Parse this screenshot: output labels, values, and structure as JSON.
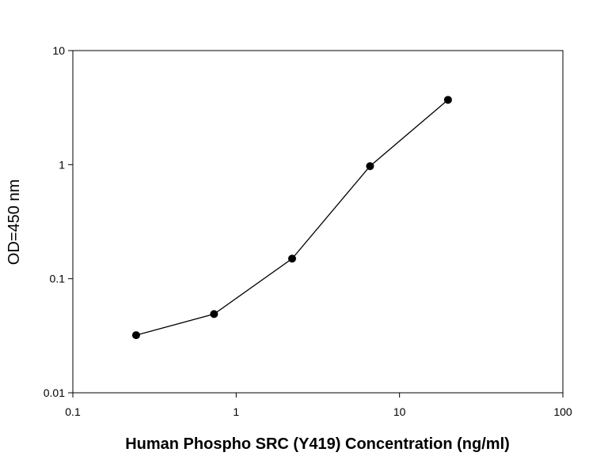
{
  "chart_data": {
    "type": "line",
    "xlabel": "Human Phospho SRC (Y419) Concentration (ng/ml)",
    "ylabel": "OD=450 nm",
    "x_scale": "log",
    "y_scale": "log",
    "xlim": [
      0.1,
      100
    ],
    "ylim": [
      0.01,
      10
    ],
    "x_ticks": [
      {
        "value": 0.1,
        "label": "0.1"
      },
      {
        "value": 1,
        "label": "1"
      },
      {
        "value": 10,
        "label": "10"
      },
      {
        "value": 100,
        "label": "100"
      }
    ],
    "y_ticks": [
      {
        "value": 0.01,
        "label": "0.01"
      },
      {
        "value": 0.1,
        "label": "0.1"
      },
      {
        "value": 1,
        "label": "1"
      },
      {
        "value": 10,
        "label": "10"
      }
    ],
    "grid": false,
    "legend": "none",
    "marker": "filled-circle",
    "color": "#000000",
    "series": [
      {
        "points": [
          {
            "x": 0.244,
            "y": 0.032
          },
          {
            "x": 0.732,
            "y": 0.049
          },
          {
            "x": 2.2,
            "y": 0.15
          },
          {
            "x": 6.6,
            "y": 0.97
          },
          {
            "x": 19.8,
            "y": 3.7
          }
        ]
      }
    ]
  }
}
